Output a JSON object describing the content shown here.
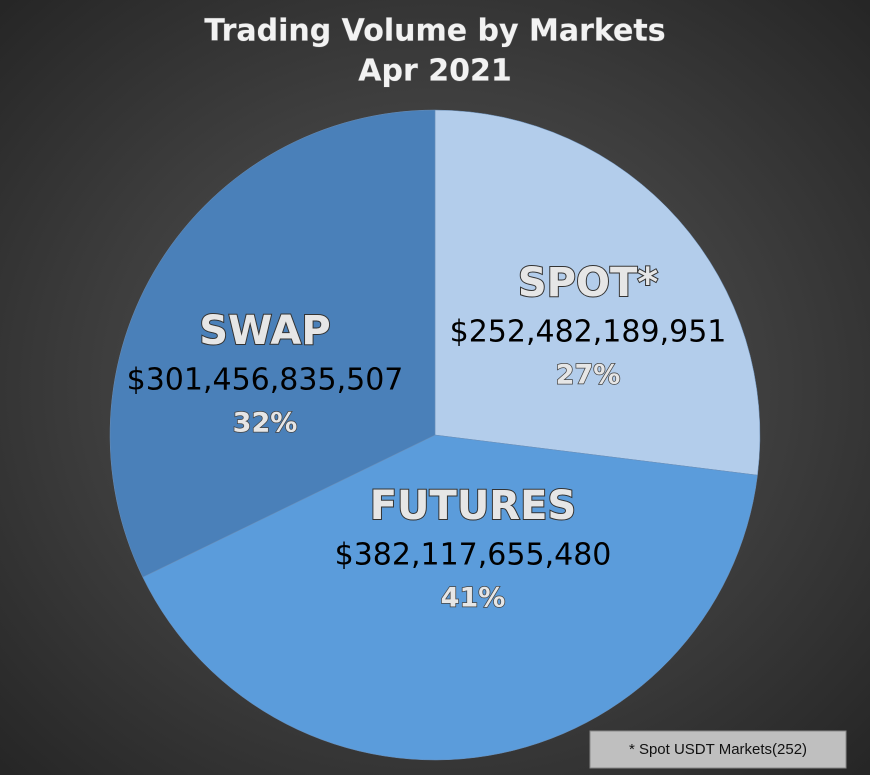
{
  "chart_data": {
    "type": "pie",
    "title": "Trading Volume by Markets",
    "subtitle": "Apr 2021",
    "categories": [
      "SPOT*",
      "FUTURES",
      "SWAP"
    ],
    "values": [
      252482189951,
      382117655480,
      301456835507
    ],
    "value_labels": [
      "$252,482,189,951",
      "$382,117,655,480",
      "$301,456,835,507"
    ],
    "percent_labels": [
      "27%",
      "41%",
      "32%"
    ],
    "colors": [
      "#b3cdeb",
      "#5b9cdb",
      "#4a80b9"
    ],
    "annotation": "* Spot USDT Markets(252)"
  }
}
